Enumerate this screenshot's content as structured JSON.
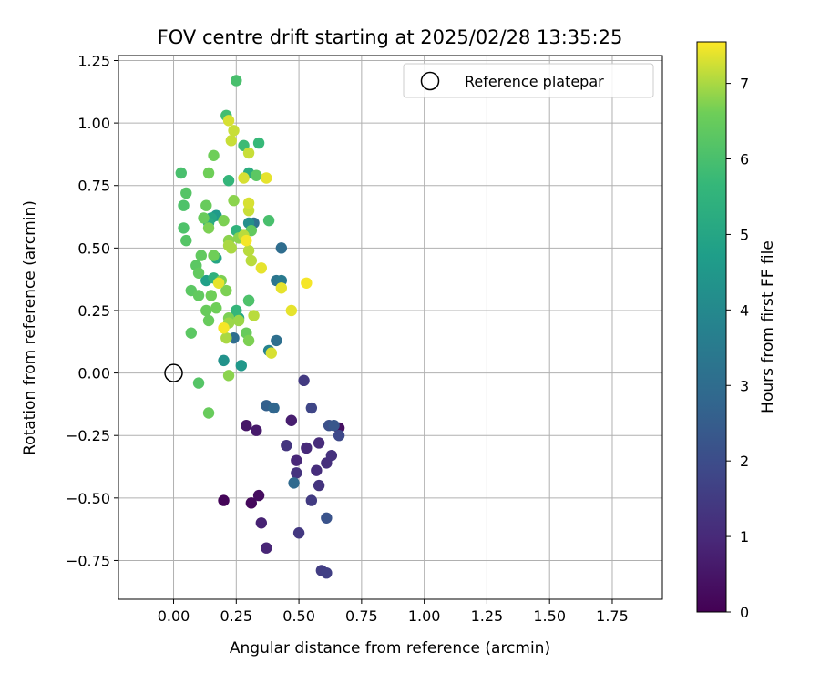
{
  "chart_data": {
    "type": "scatter",
    "title": "FOV centre drift starting at 2025/02/28 13:35:25",
    "xlabel": "Angular distance from reference (arcmin)",
    "ylabel": "Rotation from reference (arcmin)",
    "xlim": [
      -0.22,
      1.95
    ],
    "ylim": [
      -0.905,
      1.27
    ],
    "xticks": [
      "0.00",
      "0.25",
      "0.50",
      "0.75",
      "1.00",
      "1.25",
      "1.50",
      "1.75"
    ],
    "xtick_values": [
      0,
      0.25,
      0.5,
      0.75,
      1.0,
      1.25,
      1.5,
      1.75
    ],
    "yticks": [
      "−0.75",
      "−0.50",
      "−0.25",
      "0.00",
      "0.25",
      "0.50",
      "0.75",
      "1.00",
      "1.25"
    ],
    "ytick_values": [
      -0.75,
      -0.5,
      -0.25,
      0,
      0.25,
      0.5,
      0.75,
      1.0,
      1.25
    ],
    "grid": true,
    "legend": {
      "position": "top-right",
      "entries": [
        "Reference platepar"
      ]
    },
    "reference_point": {
      "x": 0.0,
      "y": 0.0
    },
    "colorbar": {
      "label": "Hours from first FF file",
      "min": 0,
      "max": 7.55,
      "ticks": [
        "0",
        "1",
        "2",
        "3",
        "4",
        "5",
        "6",
        "7"
      ],
      "tick_values": [
        0,
        1,
        2,
        3,
        4,
        5,
        6,
        7
      ],
      "colormap": "viridis"
    },
    "points": [
      [
        0.2,
        -0.51,
        0.1
      ],
      [
        0.31,
        -0.52,
        0.2
      ],
      [
        0.34,
        -0.49,
        0.3
      ],
      [
        0.66,
        -0.22,
        0.35
      ],
      [
        0.29,
        -0.21,
        0.5
      ],
      [
        0.33,
        -0.23,
        0.6
      ],
      [
        0.47,
        -0.19,
        0.7
      ],
      [
        0.35,
        -0.6,
        0.8
      ],
      [
        0.37,
        -0.7,
        0.9
      ],
      [
        0.49,
        -0.35,
        0.95
      ],
      [
        0.53,
        -0.3,
        1.0
      ],
      [
        0.58,
        -0.28,
        1.05
      ],
      [
        0.57,
        -0.39,
        1.1
      ],
      [
        0.61,
        -0.36,
        1.15
      ],
      [
        0.63,
        -0.33,
        1.2
      ],
      [
        0.49,
        -0.4,
        1.25
      ],
      [
        0.58,
        -0.45,
        1.3
      ],
      [
        0.45,
        -0.29,
        1.35
      ],
      [
        0.5,
        -0.64,
        1.4
      ],
      [
        0.52,
        -0.03,
        1.45
      ],
      [
        0.55,
        -0.51,
        1.5
      ],
      [
        0.59,
        -0.79,
        1.55
      ],
      [
        0.61,
        -0.8,
        1.6
      ],
      [
        0.55,
        -0.14,
        1.8
      ],
      [
        0.66,
        -0.25,
        1.9
      ],
      [
        0.62,
        -0.21,
        2.1
      ],
      [
        0.61,
        -0.58,
        2.2
      ],
      [
        0.64,
        -0.21,
        2.3
      ],
      [
        0.37,
        -0.13,
        2.6
      ],
      [
        0.4,
        -0.14,
        2.8
      ],
      [
        0.48,
        -0.44,
        2.9
      ],
      [
        0.43,
        0.5,
        3.0
      ],
      [
        0.24,
        0.14,
        3.0
      ],
      [
        0.41,
        0.13,
        3.1
      ],
      [
        0.32,
        0.6,
        3.2
      ],
      [
        0.41,
        0.37,
        3.3
      ],
      [
        0.43,
        0.37,
        3.5
      ],
      [
        0.38,
        0.09,
        3.8
      ],
      [
        0.3,
        0.6,
        4.2
      ],
      [
        0.2,
        0.05,
        4.3
      ],
      [
        0.27,
        0.03,
        4.5
      ],
      [
        0.17,
        0.63,
        4.6
      ],
      [
        0.3,
        0.29,
        4.7
      ],
      [
        0.13,
        0.37,
        4.8
      ],
      [
        0.26,
        0.22,
        4.9
      ],
      [
        0.15,
        0.62,
        5.0
      ],
      [
        0.17,
        0.46,
        5.0
      ],
      [
        0.14,
        0.6,
        5.2
      ],
      [
        0.3,
        0.8,
        5.3
      ],
      [
        0.16,
        0.38,
        5.4
      ],
      [
        0.25,
        0.57,
        5.5
      ],
      [
        0.22,
        0.77,
        5.6
      ],
      [
        0.25,
        0.25,
        5.6
      ],
      [
        0.34,
        0.92,
        5.7
      ],
      [
        0.28,
        0.91,
        5.8
      ],
      [
        0.21,
        1.03,
        5.9
      ],
      [
        0.25,
        1.17,
        6.0
      ],
      [
        0.03,
        0.8,
        6.0
      ],
      [
        0.04,
        0.58,
        6.1
      ],
      [
        0.04,
        0.67,
        6.1
      ],
      [
        0.05,
        0.72,
        6.2
      ],
      [
        0.05,
        0.53,
        6.2
      ],
      [
        0.07,
        0.33,
        6.3
      ],
      [
        0.07,
        0.16,
        6.3
      ],
      [
        0.09,
        0.43,
        6.3
      ],
      [
        0.1,
        0.4,
        6.4
      ],
      [
        0.1,
        0.31,
        6.4
      ],
      [
        0.11,
        0.47,
        6.4
      ],
      [
        0.12,
        0.62,
        6.5
      ],
      [
        0.13,
        0.67,
        6.5
      ],
      [
        0.13,
        0.25,
        6.5
      ],
      [
        0.14,
        0.21,
        6.5
      ],
      [
        0.15,
        0.31,
        6.6
      ],
      [
        0.16,
        0.87,
        6.6
      ],
      [
        0.16,
        0.47,
        6.6
      ],
      [
        0.17,
        0.26,
        6.6
      ],
      [
        0.19,
        0.37,
        6.7
      ],
      [
        0.2,
        0.61,
        6.7
      ],
      [
        0.21,
        0.33,
        6.7
      ],
      [
        0.22,
        0.22,
        6.7
      ],
      [
        0.22,
        -0.01,
        6.8
      ],
      [
        0.1,
        -0.04,
        6.2
      ],
      [
        0.14,
        -0.16,
        6.5
      ],
      [
        0.14,
        0.8,
        6.6
      ],
      [
        0.14,
        0.58,
        6.7
      ],
      [
        0.22,
        0.53,
        6.8
      ],
      [
        0.24,
        0.69,
        6.8
      ],
      [
        0.26,
        0.54,
        6.8
      ],
      [
        0.29,
        0.16,
        6.5
      ],
      [
        0.3,
        0.13,
        6.7
      ],
      [
        0.31,
        0.57,
        6.4
      ],
      [
        0.33,
        0.79,
        6.3
      ],
      [
        0.38,
        0.61,
        6.0
      ],
      [
        0.3,
        0.29,
        6.1
      ],
      [
        0.22,
        0.2,
        6.9
      ],
      [
        0.26,
        0.21,
        6.9
      ],
      [
        0.21,
        0.14,
        7.0
      ],
      [
        0.22,
        0.51,
        7.0
      ],
      [
        0.23,
        0.5,
        7.0
      ],
      [
        0.28,
        0.55,
        7.1
      ],
      [
        0.3,
        0.49,
        7.1
      ],
      [
        0.31,
        0.45,
        7.1
      ],
      [
        0.32,
        0.23,
        7.1
      ],
      [
        0.23,
        0.93,
        7.2
      ],
      [
        0.24,
        0.97,
        7.2
      ],
      [
        0.3,
        0.88,
        7.2
      ],
      [
        0.3,
        0.65,
        7.2
      ],
      [
        0.3,
        0.68,
        7.3
      ],
      [
        0.22,
        1.01,
        7.3
      ],
      [
        0.28,
        0.78,
        7.3
      ],
      [
        0.37,
        0.78,
        7.4
      ],
      [
        0.35,
        0.42,
        7.4
      ],
      [
        0.39,
        0.08,
        7.3
      ],
      [
        0.43,
        0.34,
        7.4
      ],
      [
        0.47,
        0.25,
        7.4
      ],
      [
        0.53,
        0.36,
        7.5
      ],
      [
        0.18,
        0.36,
        7.4
      ],
      [
        0.29,
        0.53,
        7.5
      ],
      [
        0.2,
        0.18,
        7.5
      ]
    ]
  }
}
